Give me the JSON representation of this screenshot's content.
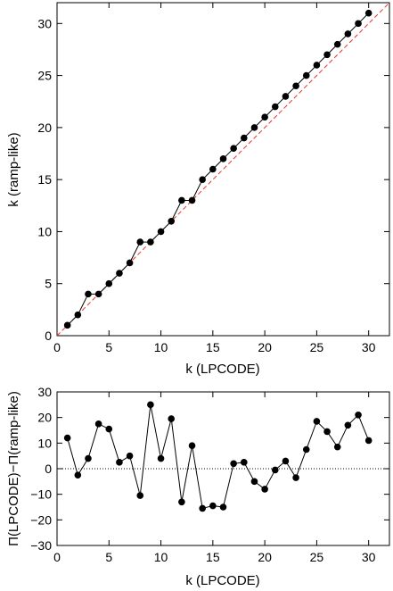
{
  "chart_data": [
    {
      "type": "scatter",
      "xlabel": "k (LPCODE)",
      "ylabel": "k (ramp-like)",
      "xlim": [
        0,
        32
      ],
      "ylim": [
        0,
        32
      ],
      "xticks": [
        0,
        5,
        10,
        15,
        20,
        25,
        30
      ],
      "yticks": [
        0,
        5,
        10,
        15,
        20,
        25,
        30
      ],
      "grid": false,
      "series": [
        {
          "style": "line-with-markers",
          "color": "#000000",
          "x": [
            1,
            2,
            3,
            4,
            5,
            6,
            7,
            8,
            9,
            10,
            11,
            12,
            13,
            14,
            15,
            16,
            17,
            18,
            19,
            20,
            21,
            22,
            23,
            24,
            25,
            26,
            27,
            28,
            29,
            30
          ],
          "y": [
            1,
            2,
            4,
            4,
            5,
            6,
            7,
            9,
            9,
            10,
            11,
            13,
            13,
            15,
            16,
            17,
            18,
            19,
            20,
            21,
            22,
            23,
            24,
            25,
            26,
            27,
            28,
            29,
            30,
            31
          ]
        },
        {
          "style": "dashed-reference-line",
          "color": "#e8312a",
          "x": [
            0,
            32
          ],
          "y": [
            0,
            32
          ]
        }
      ]
    },
    {
      "type": "line",
      "xlabel": "k (LPCODE)",
      "ylabel": "Π(LPCODE)−Π(ramp-like)",
      "xlim": [
        0,
        32
      ],
      "ylim": [
        -30,
        30
      ],
      "xticks": [
        0,
        5,
        10,
        15,
        20,
        25,
        30
      ],
      "yticks": [
        -30,
        -20,
        -10,
        0,
        10,
        20,
        30
      ],
      "grid": false,
      "zero_line": "dotted",
      "series": [
        {
          "style": "line-with-markers",
          "color": "#000000",
          "x": [
            1,
            2,
            3,
            4,
            5,
            6,
            7,
            8,
            9,
            10,
            11,
            12,
            13,
            14,
            15,
            16,
            17,
            18,
            19,
            20,
            21,
            22,
            23,
            24,
            25,
            26,
            27,
            28,
            29,
            30
          ],
          "y": [
            12,
            -2.5,
            4,
            17.5,
            15.5,
            2.5,
            5,
            -10.5,
            25,
            4,
            19.5,
            -13,
            9,
            -15.5,
            -14.5,
            -15,
            2,
            2.5,
            -5,
            -8,
            -0.5,
            3,
            -3.5,
            7.5,
            18.5,
            14.5,
            8.5,
            17,
            21,
            11
          ]
        }
      ]
    }
  ]
}
